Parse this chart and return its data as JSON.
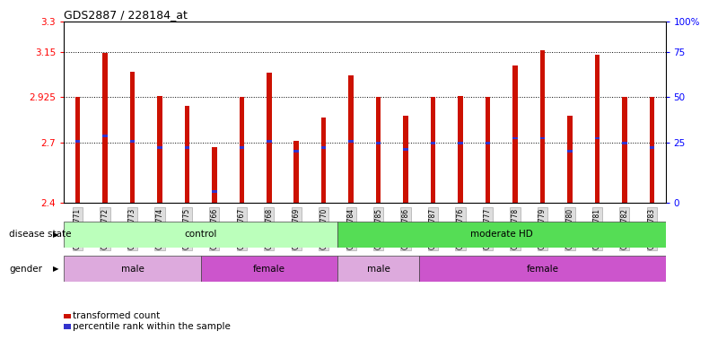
{
  "title": "GDS2887 / 228184_at",
  "samples": [
    "GSM217771",
    "GSM217772",
    "GSM217773",
    "GSM217774",
    "GSM217775",
    "GSM217766",
    "GSM217767",
    "GSM217768",
    "GSM217769",
    "GSM217770",
    "GSM217784",
    "GSM217785",
    "GSM217786",
    "GSM217787",
    "GSM217776",
    "GSM217777",
    "GSM217778",
    "GSM217779",
    "GSM217780",
    "GSM217781",
    "GSM217782",
    "GSM217783"
  ],
  "bar_tops": [
    2.925,
    3.145,
    3.05,
    2.93,
    2.88,
    2.675,
    2.925,
    3.045,
    2.705,
    2.825,
    3.035,
    2.925,
    2.83,
    2.925,
    2.93,
    2.925,
    3.08,
    3.16,
    2.83,
    3.135,
    2.925,
    2.925
  ],
  "blue_markers": [
    2.705,
    2.73,
    2.705,
    2.675,
    2.675,
    2.455,
    2.675,
    2.705,
    2.655,
    2.675,
    2.705,
    2.695,
    2.665,
    2.695,
    2.695,
    2.695,
    2.72,
    2.72,
    2.655,
    2.72,
    2.695,
    2.675
  ],
  "ymin": 2.4,
  "ymax": 3.3,
  "yticks_left": [
    2.4,
    2.7,
    2.925,
    3.15,
    3.3
  ],
  "ytick_labels_left": [
    "2.4",
    "2.7",
    "2.925",
    "3.15",
    "3.3"
  ],
  "yticks_right": [
    2.4,
    2.7,
    2.925,
    3.15,
    3.3
  ],
  "ytick_labels_right": [
    "0",
    "25",
    "50",
    "75",
    "100%"
  ],
  "hlines": [
    2.7,
    2.925,
    3.15
  ],
  "bar_color": "#cc1100",
  "blue_color": "#3333cc",
  "bar_bottom": 2.4,
  "disease_state_groups": [
    {
      "label": "control",
      "start": 0,
      "end": 10,
      "color": "#bbffbb"
    },
    {
      "label": "moderate HD",
      "start": 10,
      "end": 22,
      "color": "#55dd55"
    }
  ],
  "gender_groups": [
    {
      "label": "male",
      "start": 0,
      "end": 5,
      "color": "#ddaadd"
    },
    {
      "label": "female",
      "start": 5,
      "end": 10,
      "color": "#cc55cc"
    },
    {
      "label": "male",
      "start": 10,
      "end": 13,
      "color": "#ddaadd"
    },
    {
      "label": "female",
      "start": 13,
      "end": 22,
      "color": "#cc55cc"
    }
  ],
  "legend_items": [
    {
      "label": "transformed count",
      "color": "#cc1100"
    },
    {
      "label": "percentile rank within the sample",
      "color": "#3333cc"
    }
  ],
  "disease_label": "disease state",
  "gender_label": "gender",
  "background_color": "#ffffff",
  "plot_bg": "#ffffff",
  "tick_label_bg": "#dddddd"
}
